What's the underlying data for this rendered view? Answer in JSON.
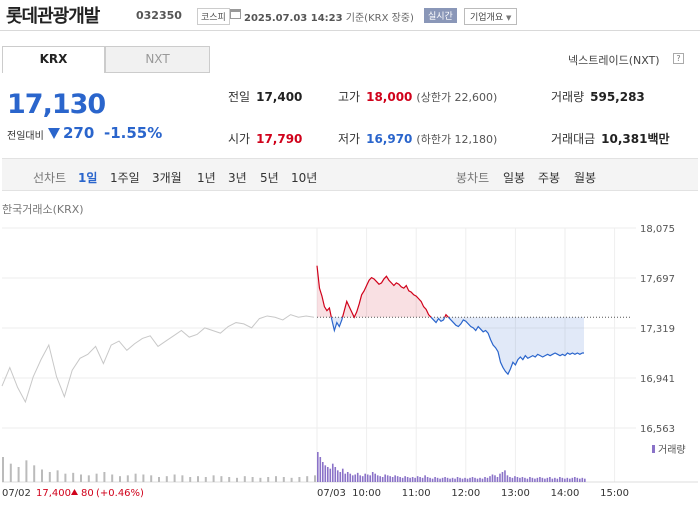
{
  "header": {
    "name": "롯데관광개발",
    "code": "032350",
    "market": "코스피",
    "time": "2025.07.03 14:23",
    "basis": "기준(KRX 장중)",
    "realtime": "실시간",
    "overview": "기업개요"
  },
  "tabs": {
    "krx": "KRX",
    "nxt": "NXT"
  },
  "nxt_info": "넥스트레이드(NXT)",
  "help": "?",
  "quote": {
    "price": "17,130",
    "change_label": "전일대비",
    "change": "270",
    "change_pct": "-1.55%"
  },
  "stats": {
    "prev": {
      "label": "전일",
      "value": "17,400"
    },
    "high": {
      "label": "고가",
      "value": "18,000",
      "sub": "(상한가 22,600)"
    },
    "volume": {
      "label": "거래량",
      "value": "595,283"
    },
    "open": {
      "label": "시가",
      "value": "17,790"
    },
    "low": {
      "label": "저가",
      "value": "16,970",
      "sub": "(하한가 12,180)"
    },
    "amount": {
      "label": "거래대금",
      "value": "10,381",
      "unit": "백만"
    }
  },
  "periods": {
    "line_label": "선차트",
    "line": [
      "1일",
      "1주일",
      "3개월",
      "1년",
      "3년",
      "5년",
      "10년"
    ],
    "selected": "1일",
    "candle_label": "봉차트",
    "candle": [
      "일봉",
      "주봉",
      "월봉"
    ]
  },
  "chart_title": "한국거래소(KRX)",
  "colors": {
    "up": "#d0021b",
    "down": "#2a65cc",
    "gray": "#c8c8c8"
  },
  "chart_data": {
    "type": "line",
    "y_ticks": [
      "18,075",
      "17,697",
      "17,319",
      "16,941",
      "16,563"
    ],
    "ylim": [
      16563,
      18075
    ],
    "x_ticks": [
      "07/03",
      "10:00",
      "11:00",
      "12:00",
      "13:00",
      "14:00",
      "15:00"
    ],
    "baseline": 17400,
    "prev_day": {
      "date": "07/02",
      "close": "17,400",
      "change": "80",
      "change_pct": "(+0.46%)"
    },
    "volume_label": "거래량",
    "prev_day_series": [
      16880,
      17020,
      16870,
      16760,
      16950,
      17080,
      17190,
      16950,
      16800,
      17000,
      17090,
      17120,
      17180,
      17050,
      17190,
      17220,
      17150,
      17200,
      17240,
      17260,
      17180,
      17220,
      17260,
      17300,
      17250,
      17270,
      17320,
      17300,
      17280,
      17330,
      17360,
      17350,
      17320,
      17390,
      17410,
      17400,
      17380,
      17420,
      17400,
      17410,
      17400
    ],
    "today_series": [
      {
        "t": "09:00",
        "v": 17790
      },
      {
        "t": "09:03",
        "v": 17620
      },
      {
        "t": "09:06",
        "v": 17560
      },
      {
        "t": "09:09",
        "v": 17480
      },
      {
        "t": "09:12",
        "v": 17450
      },
      {
        "t": "09:15",
        "v": 17470
      },
      {
        "t": "09:18",
        "v": 17380
      },
      {
        "t": "09:21",
        "v": 17300
      },
      {
        "t": "09:24",
        "v": 17360
      },
      {
        "t": "09:27",
        "v": 17330
      },
      {
        "t": "09:30",
        "v": 17380
      },
      {
        "t": "09:33",
        "v": 17450
      },
      {
        "t": "09:36",
        "v": 17520
      },
      {
        "t": "09:39",
        "v": 17480
      },
      {
        "t": "09:42",
        "v": 17440
      },
      {
        "t": "09:45",
        "v": 17400
      },
      {
        "t": "09:48",
        "v": 17440
      },
      {
        "t": "09:51",
        "v": 17500
      },
      {
        "t": "09:54",
        "v": 17570
      },
      {
        "t": "09:57",
        "v": 17600
      },
      {
        "t": "10:00",
        "v": 17640
      },
      {
        "t": "10:03",
        "v": 17680
      },
      {
        "t": "10:06",
        "v": 17700
      },
      {
        "t": "10:09",
        "v": 17690
      },
      {
        "t": "10:12",
        "v": 17670
      },
      {
        "t": "10:15",
        "v": 17650
      },
      {
        "t": "10:18",
        "v": 17660
      },
      {
        "t": "10:21",
        "v": 17690
      },
      {
        "t": "10:24",
        "v": 17710
      },
      {
        "t": "10:27",
        "v": 17680
      },
      {
        "t": "10:30",
        "v": 17660
      },
      {
        "t": "10:33",
        "v": 17640
      },
      {
        "t": "10:36",
        "v": 17660
      },
      {
        "t": "10:39",
        "v": 17650
      },
      {
        "t": "10:42",
        "v": 17630
      },
      {
        "t": "10:45",
        "v": 17620
      },
      {
        "t": "10:48",
        "v": 17640
      },
      {
        "t": "10:51",
        "v": 17600
      },
      {
        "t": "10:54",
        "v": 17590
      },
      {
        "t": "10:57",
        "v": 17570
      },
      {
        "t": "11:00",
        "v": 17560
      },
      {
        "t": "11:03",
        "v": 17540
      },
      {
        "t": "11:06",
        "v": 17520
      },
      {
        "t": "11:09",
        "v": 17480
      },
      {
        "t": "11:12",
        "v": 17460
      },
      {
        "t": "11:15",
        "v": 17420
      },
      {
        "t": "11:18",
        "v": 17400
      },
      {
        "t": "11:21",
        "v": 17380
      },
      {
        "t": "11:24",
        "v": 17360
      },
      {
        "t": "11:27",
        "v": 17390
      },
      {
        "t": "11:30",
        "v": 17370
      },
      {
        "t": "11:33",
        "v": 17380
      },
      {
        "t": "11:36",
        "v": 17420
      },
      {
        "t": "11:39",
        "v": 17400
      },
      {
        "t": "11:42",
        "v": 17380
      },
      {
        "t": "11:45",
        "v": 17360
      },
      {
        "t": "11:48",
        "v": 17340
      },
      {
        "t": "11:51",
        "v": 17330
      },
      {
        "t": "11:54",
        "v": 17350
      },
      {
        "t": "11:57",
        "v": 17380
      },
      {
        "t": "12:00",
        "v": 17370
      },
      {
        "t": "12:03",
        "v": 17350
      },
      {
        "t": "12:06",
        "v": 17330
      },
      {
        "t": "12:09",
        "v": 17320
      },
      {
        "t": "12:12",
        "v": 17300
      },
      {
        "t": "12:15",
        "v": 17330
      },
      {
        "t": "12:18",
        "v": 17310
      },
      {
        "t": "12:21",
        "v": 17290
      },
      {
        "t": "12:24",
        "v": 17300
      },
      {
        "t": "12:27",
        "v": 17280
      },
      {
        "t": "12:30",
        "v": 17230
      },
      {
        "t": "12:33",
        "v": 17190
      },
      {
        "t": "12:36",
        "v": 17170
      },
      {
        "t": "12:39",
        "v": 17140
      },
      {
        "t": "12:42",
        "v": 17060
      },
      {
        "t": "12:45",
        "v": 17020
      },
      {
        "t": "12:48",
        "v": 16990
      },
      {
        "t": "12:51",
        "v": 16970
      },
      {
        "t": "12:54",
        "v": 17010
      },
      {
        "t": "12:57",
        "v": 17060
      },
      {
        "t": "13:00",
        "v": 17040
      },
      {
        "t": "13:03",
        "v": 17080
      },
      {
        "t": "13:06",
        "v": 17100
      },
      {
        "t": "13:09",
        "v": 17080
      },
      {
        "t": "13:12",
        "v": 17110
      },
      {
        "t": "13:15",
        "v": 17090
      },
      {
        "t": "13:18",
        "v": 17100
      },
      {
        "t": "13:21",
        "v": 17110
      },
      {
        "t": "13:24",
        "v": 17100
      },
      {
        "t": "13:27",
        "v": 17120
      },
      {
        "t": "13:30",
        "v": 17110
      },
      {
        "t": "13:33",
        "v": 17100
      },
      {
        "t": "13:36",
        "v": 17110
      },
      {
        "t": "13:39",
        "v": 17120
      },
      {
        "t": "13:42",
        "v": 17110
      },
      {
        "t": "13:45",
        "v": 17120
      },
      {
        "t": "13:48",
        "v": 17130
      },
      {
        "t": "13:51",
        "v": 17120
      },
      {
        "t": "13:54",
        "v": 17110
      },
      {
        "t": "13:57",
        "v": 17120
      },
      {
        "t": "14:00",
        "v": 17110
      },
      {
        "t": "14:03",
        "v": 17130
      },
      {
        "t": "14:06",
        "v": 17120
      },
      {
        "t": "14:09",
        "v": 17130
      },
      {
        "t": "14:12",
        "v": 17120
      },
      {
        "t": "14:15",
        "v": 17130
      },
      {
        "t": "14:18",
        "v": 17120
      },
      {
        "t": "14:21",
        "v": 17130
      },
      {
        "t": "14:23",
        "v": 17130
      }
    ],
    "prev_day_volume": [
      30,
      22,
      18,
      26,
      20,
      15,
      12,
      14,
      10,
      11,
      9,
      8,
      10,
      12,
      9,
      7,
      8,
      10,
      9,
      8,
      6,
      7,
      9,
      8,
      6,
      7,
      6,
      8,
      7,
      6,
      5,
      7,
      6,
      5,
      6,
      7,
      6,
      5,
      6,
      7,
      8
    ],
    "today_volume": [
      36,
      30,
      24,
      20,
      18,
      16,
      22,
      18,
      14,
      12,
      16,
      10,
      12,
      10,
      8,
      9,
      11,
      8,
      7,
      10,
      9,
      8,
      12,
      10,
      8,
      7,
      6,
      9,
      8,
      7,
      6,
      8,
      7,
      6,
      5,
      7,
      6,
      5,
      6,
      5,
      7,
      6,
      5,
      8,
      6,
      5,
      4,
      6,
      5,
      4,
      5,
      6,
      5,
      4,
      5,
      4,
      6,
      5,
      4,
      5,
      4,
      5,
      6,
      5,
      4,
      5,
      4,
      6,
      5,
      7,
      9,
      8,
      6,
      10,
      12,
      14,
      8,
      6,
      5,
      7,
      6,
      5,
      6,
      5,
      4,
      6,
      5,
      4,
      5,
      6,
      5,
      4,
      5,
      6,
      4,
      5,
      4,
      6,
      5,
      4,
      5,
      4,
      5,
      6,
      5,
      4,
      5,
      4
    ]
  }
}
